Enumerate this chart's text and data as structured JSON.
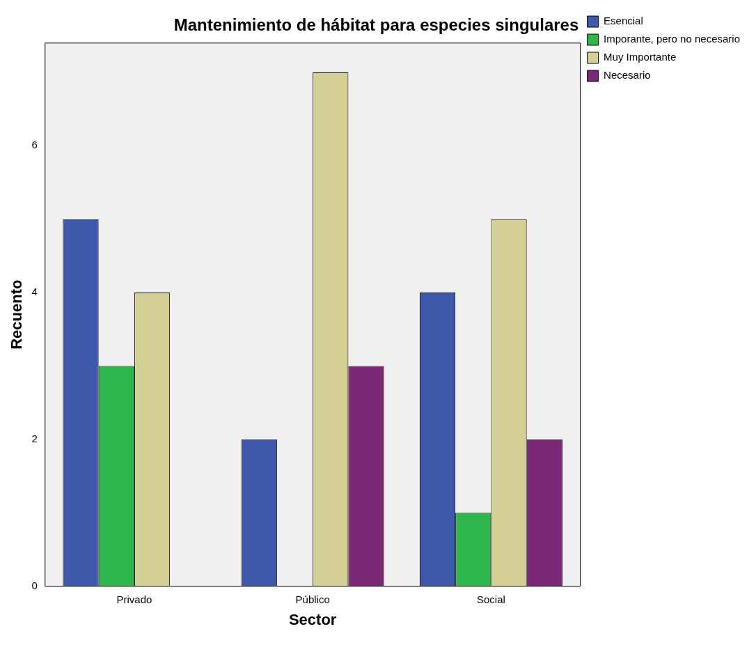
{
  "chart_data": {
    "type": "bar",
    "title": "Mantenimiento de hábitat para especies singulares",
    "xlabel": "Sector",
    "ylabel": "Recuento",
    "categories": [
      "Privado",
      "Público",
      "Social"
    ],
    "series": [
      {
        "name": "Esencial",
        "color": "#3e58ac",
        "values": [
          5,
          2,
          4
        ]
      },
      {
        "name": "Imporante, pero no necesario",
        "color": "#2eb84b",
        "values": [
          3,
          0,
          1
        ]
      },
      {
        "name": "Muy Importante",
        "color": "#d4cf94",
        "values": [
          4,
          7,
          5
        ]
      },
      {
        "name": "Necesario",
        "color": "#7c2878",
        "values": [
          0,
          3,
          2
        ]
      }
    ],
    "ylim": [
      0,
      7.4
    ],
    "yticks": [
      0,
      2,
      4,
      6
    ],
    "grid": false,
    "legend": "top right"
  }
}
